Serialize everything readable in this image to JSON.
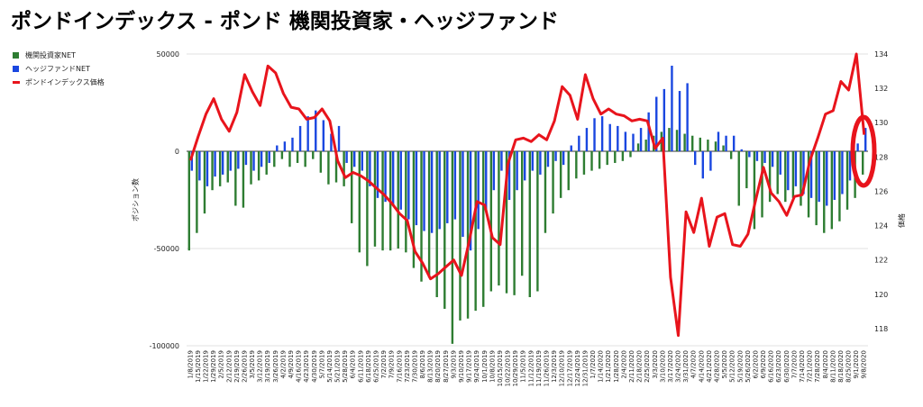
{
  "title": "ポンドインデックス - ポンド 機関投資家・ヘッジファンド",
  "chart_data": {
    "type": "bar",
    "title": "ポンドインデックス - ポンド 機関投資家・ヘッジファンド",
    "ylabel": "ポジション数",
    "y2label": "価格",
    "ylim": [
      -100000,
      50000
    ],
    "y2lim": [
      117,
      134
    ],
    "yticks": [
      "50000",
      "0",
      "-50000",
      "-100000"
    ],
    "y2ticks": [
      "134",
      "132",
      "130",
      "128",
      "126",
      "124",
      "122",
      "120",
      "118"
    ],
    "legend_position": "top-left",
    "grid": true,
    "colors": {
      "inst": "#2e7d32",
      "hedge": "#1a47e0",
      "price": "#e8141c",
      "circle": "#e8141c"
    },
    "x_ticks": [
      "1/8/2019",
      "1/15/2019",
      "1/22/2019",
      "1/29/2019",
      "2/5/2019",
      "2/12/2019",
      "2/19/2019",
      "2/26/2019",
      "3/5/2019",
      "3/12/2019",
      "3/19/2019",
      "3/26/2019",
      "4/2/2019",
      "4/9/2019",
      "4/16/2019",
      "4/23/2019",
      "4/30/2019",
      "5/7/2019",
      "5/14/2019",
      "5/21/2019",
      "5/28/2019",
      "6/4/2019",
      "6/11/2019",
      "6/18/2019",
      "6/25/2019",
      "7/2/2019",
      "7/9/2019",
      "7/16/2019",
      "7/23/2019",
      "7/30/2019",
      "8/6/2019",
      "8/13/2019",
      "8/20/2019",
      "8/27/2019",
      "9/3/2019",
      "9/10/2019",
      "9/17/2019",
      "9/24/2019",
      "10/1/2019",
      "10/8/2019",
      "10/15/2019",
      "10/22/2019",
      "10/29/2019",
      "11/5/2019",
      "11/12/2019",
      "11/19/2019",
      "11/26/2019",
      "12/3/2019",
      "12/10/2019",
      "12/17/2019",
      "12/24/2019",
      "12/31/2019",
      "1/7/2020",
      "1/14/2020",
      "1/21/2020",
      "1/28/2020",
      "2/4/2020",
      "2/11/2020",
      "2/18/2020",
      "2/25/2020",
      "3/3/2020",
      "3/10/2020",
      "3/17/2020",
      "3/24/2020",
      "3/31/2020",
      "4/7/2020",
      "4/14/2020",
      "4/21/2020",
      "4/28/2020",
      "5/5/2020",
      "5/12/2020",
      "5/19/2020",
      "5/26/2020",
      "6/2/2020",
      "6/9/2020",
      "6/16/2020",
      "6/23/2020",
      "6/30/2020",
      "7/7/2020",
      "7/14/2020",
      "7/21/2020",
      "7/28/2020",
      "8/4/2020",
      "8/11/2020",
      "8/18/2020",
      "8/25/2020",
      "9/1/2020",
      "9/8/2020"
    ],
    "series": [
      {
        "name": "機関投資家NET",
        "values": [
          -51000,
          -42000,
          -32000,
          -20000,
          -18000,
          -16000,
          -28000,
          -29000,
          -17000,
          -15000,
          -12000,
          -8000,
          -4000,
          -8000,
          -6000,
          -8000,
          -4000,
          -11000,
          -17000,
          -16000,
          -18000,
          -37000,
          -52000,
          -59000,
          -49000,
          -51000,
          -51000,
          -50000,
          -52000,
          -60000,
          -67000,
          -65000,
          -75000,
          -81000,
          -99000,
          -87000,
          -86000,
          -82000,
          -80000,
          -72000,
          -69000,
          -73000,
          -74000,
          -64000,
          -75000,
          -72000,
          -42000,
          -32000,
          -24000,
          -20000,
          -14000,
          -12000,
          -10000,
          -9000,
          -7000,
          -6000,
          -5000,
          -3000,
          4000,
          6000,
          8000,
          10000,
          12000,
          11000,
          9000,
          8000,
          7000,
          6000,
          5000,
          3000,
          -4000,
          -28000,
          -19000,
          -40000,
          -34000,
          -26000,
          -22000,
          -26000,
          -24000,
          -28000,
          -34000,
          -38000,
          -42000,
          -40000,
          -36000,
          -30000,
          -24000,
          -12000
        ]
      },
      {
        "name": "ヘッジファンドNET",
        "values": [
          -10000,
          -15000,
          -18000,
          -13000,
          -12000,
          -10000,
          -9000,
          -7000,
          -10000,
          -8000,
          -6000,
          3000,
          5000,
          7000,
          13000,
          18000,
          21000,
          16000,
          9000,
          13000,
          -6000,
          -8000,
          -10000,
          -18000,
          -24000,
          -26000,
          -28000,
          -30000,
          -35000,
          -38000,
          -41000,
          -42000,
          -40000,
          -37000,
          -35000,
          -44000,
          -51000,
          -40000,
          -30000,
          -20000,
          -10000,
          -25000,
          -20000,
          -15000,
          -10000,
          -12000,
          -8000,
          -5000,
          -7000,
          3000,
          8000,
          12000,
          17000,
          18000,
          14000,
          13000,
          10000,
          9000,
          12000,
          20000,
          28000,
          32000,
          44000,
          31000,
          35000,
          -7000,
          -14000,
          -10000,
          10000,
          8000,
          8000,
          1000,
          -3000,
          -5000,
          -6000,
          -8000,
          -12000,
          -20000,
          -18000,
          -22000,
          -24000,
          -26000,
          -28000,
          -25000,
          -22000,
          -15000,
          4000,
          12000
        ]
      },
      {
        "name": "ポンドインデックス価格",
        "values": [
          127.8,
          129.2,
          130.5,
          131.4,
          130.2,
          129.5,
          130.6,
          132.8,
          131.8,
          131.0,
          133.3,
          132.9,
          131.7,
          130.9,
          130.8,
          130.2,
          130.3,
          130.8,
          130.1,
          127.8,
          126.8,
          127.1,
          126.9,
          126.6,
          126.2,
          125.8,
          125.3,
          124.7,
          124.3,
          122.5,
          121.8,
          120.9,
          121.2,
          121.6,
          122.0,
          121.1,
          123.1,
          125.4,
          125.2,
          123.3,
          122.9,
          127.6,
          129.0,
          129.1,
          128.9,
          129.3,
          129.0,
          130.1,
          132.1,
          131.6,
          130.2,
          132.8,
          131.4,
          130.5,
          130.8,
          130.5,
          130.4,
          130.1,
          130.2,
          130.1,
          128.5,
          129.1,
          121.0,
          117.6,
          124.8,
          123.6,
          125.6,
          122.8,
          124.5,
          124.7,
          122.9,
          122.8,
          123.5,
          125.5,
          127.4,
          125.9,
          125.4,
          124.6,
          125.7,
          125.8,
          127.8,
          129.1,
          130.5,
          130.7,
          132.4,
          131.9,
          134.0,
          129.3
        ]
      }
    ]
  }
}
